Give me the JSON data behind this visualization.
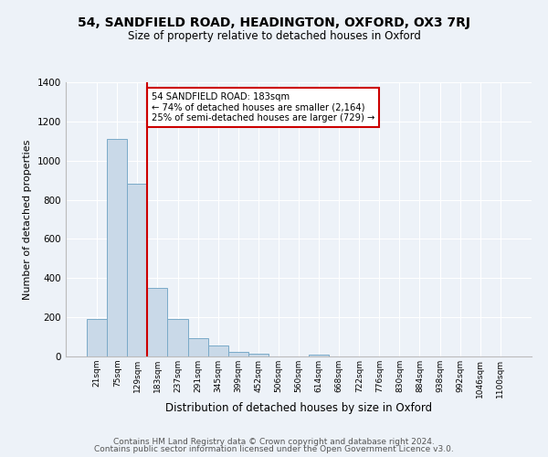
{
  "title1": "54, SANDFIELD ROAD, HEADINGTON, OXFORD, OX3 7RJ",
  "title2": "Size of property relative to detached houses in Oxford",
  "xlabel": "Distribution of detached houses by size in Oxford",
  "ylabel": "Number of detached properties",
  "bar_labels": [
    "21sqm",
    "75sqm",
    "129sqm",
    "183sqm",
    "237sqm",
    "291sqm",
    "345sqm",
    "399sqm",
    "452sqm",
    "506sqm",
    "560sqm",
    "614sqm",
    "668sqm",
    "722sqm",
    "776sqm",
    "830sqm",
    "884sqm",
    "938sqm",
    "992sqm",
    "1046sqm",
    "1100sqm"
  ],
  "bar_heights": [
    193,
    1113,
    884,
    352,
    193,
    95,
    57,
    22,
    15,
    0,
    0,
    10,
    0,
    0,
    0,
    0,
    0,
    0,
    0,
    0,
    0
  ],
  "bar_color": "#c9d9e8",
  "bar_edge_color": "#7aaac8",
  "red_line_index": 3,
  "annotation_title": "54 SANDFIELD ROAD: 183sqm",
  "annotation_line1": "← 74% of detached houses are smaller (2,164)",
  "annotation_line2": "25% of semi-detached houses are larger (729) →",
  "annotation_box_color": "#ffffff",
  "annotation_box_edge": "#cc0000",
  "red_line_color": "#cc0000",
  "ylim": [
    0,
    1400
  ],
  "yticks": [
    0,
    200,
    400,
    600,
    800,
    1000,
    1200,
    1400
  ],
  "footer1": "Contains HM Land Registry data © Crown copyright and database right 2024.",
  "footer2": "Contains public sector information licensed under the Open Government Licence v3.0.",
  "bg_color": "#edf2f8",
  "plot_bg_color": "#edf2f8",
  "grid_color": "#ffffff",
  "title1_fontsize": 10,
  "title2_fontsize": 8.5,
  "xlabel_fontsize": 8.5,
  "ylabel_fontsize": 8,
  "footer_fontsize": 6.5
}
